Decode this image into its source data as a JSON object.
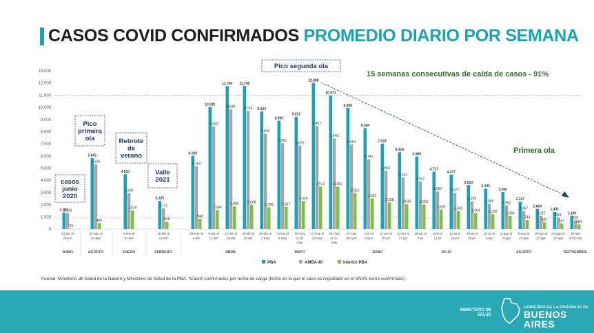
{
  "title": {
    "part1": "CASOS COVID CONFIRMADOS",
    "part2": "PROMEDIO DIARIO POR SEMANA"
  },
  "source": "Fuente: Ministerio de Salud de la Nación y Ministerio de Salud de la PBA. *Casos confirmados por fecha de carga (fecha en la que el caso es registrado en el SNVS como confirmado).",
  "footer": {
    "ministerio": [
      "MINISTERIO DE",
      "SALUD"
    ],
    "gobierno": "GOBIERNO DE LA PROVINCIA DE",
    "provincia": "BUENOS AIRES"
  },
  "colors": {
    "pba": "#1aa3b8",
    "amba": "#a6a6a6",
    "interior": "#7cc242",
    "footer": "#2ba8b6",
    "annotation_green": "#2e6b28",
    "box_navy": "#1f3864"
  },
  "chart_data": {
    "type": "bar",
    "ylim": [
      0,
      13000
    ],
    "yticks": [
      "0",
      "1.000",
      "2.000",
      "3.000",
      "4.000",
      "5.000",
      "6.000",
      "7.000",
      "8.000",
      "9.000",
      "10.000",
      "11.000",
      "12.000",
      "13.000"
    ],
    "categories": [
      [
        "14-jun al",
        "20-jun"
      ],
      [
        "24-ago al",
        "30-ago"
      ],
      [
        "4-ene al",
        "10-ene"
      ],
      [
        "15-feb al",
        "21-feb"
      ],
      [
        "29-mar al",
        "4-abr"
      ],
      [
        "5-abr al",
        "11-abr"
      ],
      [
        "12-abr al",
        "18-abr"
      ],
      [
        "19-abr al",
        "25-abr"
      ],
      [
        "26-abr al",
        "2-may"
      ],
      [
        "3-may al",
        "9-may"
      ],
      [
        "10-may",
        "al 16-",
        "may"
      ],
      [
        "17-may al",
        "23-may"
      ],
      [
        "24-may",
        "al 31-",
        "may"
      ],
      [
        "31-may",
        "al 6-jun"
      ],
      [
        "7-jun al",
        "13-jun"
      ],
      [
        "14-jun al",
        "20-jun"
      ],
      [
        "21-jun al",
        "27-jun"
      ],
      [
        "28-jun al",
        "4-jul"
      ],
      [
        "5-jul al",
        "11-jul"
      ],
      [
        "12-jul al",
        "18-jul"
      ],
      [
        "19-jul al",
        "25-jul"
      ],
      [
        "26-jul al",
        "1-ago"
      ],
      [
        "2-ago al",
        "8-ago"
      ],
      [
        "9-ago al",
        "15-ago"
      ],
      [
        "16-ago al",
        "22-ago"
      ],
      [
        "23-ago al",
        "29-ago"
      ],
      [
        "30-ago",
        "al 05-sep"
      ]
    ],
    "series": [
      {
        "name": "PBA",
        "values": [
          1362,
          5845,
          4510,
          2325,
          6020,
          10032,
          11740,
          11746,
          9663,
          8905,
          9221,
          12008,
          10973,
          9950,
          8294,
          7016,
          6314,
          5965,
          4717,
          4477,
          3610,
          3325,
          3050,
          2247,
          1664,
          1431,
          1100
        ],
        "labels": [
          "1.362",
          "5.845",
          "4.510",
          "2.325",
          "6.020",
          "10.032",
          "11.740",
          "11.746",
          "9.663",
          "8.905",
          "9.221",
          "12.008",
          "10.973",
          "9.950",
          "8.294",
          "7.016",
          "6.314",
          "5.965",
          "4.717",
          "4.477",
          "3.610",
          "3.325",
          "3.050",
          "2.247",
          "1.664",
          "1.431",
          "1.100"
        ]
      },
      {
        "name": "AMBA 40",
        "values": [
          1319,
          5334,
          2969,
          1721,
          5160,
          8442,
          9838,
          9703,
          7849,
          7061,
          6870,
          8467,
          7446,
          6954,
          5741,
          4803,
          4241,
          3922,
          3097,
          2977,
          2295,
          2086,
          1952,
          1497,
          1092,
          959,
          712
        ],
        "labels": [
          "1.319",
          "5.334",
          "2.969",
          "1.721",
          "5.160",
          "8.442",
          "9.838",
          "9.703",
          "7.849",
          "7.061",
          "6.870",
          "8.467",
          "7.446",
          "6.954",
          "5.741",
          "4.803",
          "4.241",
          "3.922",
          "3.097",
          "2.977",
          "2.295",
          "2.086",
          "1.952",
          "1.497",
          "1.092",
          "959",
          "712"
        ]
      },
      {
        "name": "Interior PBA",
        "values": [
          33,
          490,
          1529,
          598,
          848,
          1564,
          1869,
          2008,
          1786,
          1817,
          2314,
          3512,
          3491,
          2961,
          2523,
          2188,
          2049,
          2025,
          1605,
          1481,
          1304,
          1229,
          1086,
          743,
          567,
          467,
          384
        ],
        "labels": [
          "33",
          "490",
          "1.529",
          "598",
          "848",
          "1.564",
          "1.869",
          "2.008",
          "1.786",
          "1.817",
          "2.314",
          "3.512",
          "3.491",
          "2.961",
          "2.523",
          "2.188",
          "2.049",
          "2.025",
          "1.605",
          "1.481",
          "1.304",
          "1.229",
          "1.086",
          "743",
          "567",
          "467",
          "384"
        ]
      }
    ],
    "months": [
      {
        "label": "JUNIO",
        "from": 0,
        "to": 0
      },
      {
        "label": "AGOSTO",
        "from": 1,
        "to": 1
      },
      {
        "label": "ENERO",
        "from": 2,
        "to": 2
      },
      {
        "label": "FEBRERO",
        "from": 3,
        "to": 3
      },
      {
        "label": "ABRIL",
        "from": 4,
        "to": 8
      },
      {
        "label": "MAYO",
        "from": 8,
        "to": 12
      },
      {
        "label": "JUNIO",
        "from": 13,
        "to": 16
      },
      {
        "label": "JULIO",
        "from": 17,
        "to": 20
      },
      {
        "label": "AGOSTO",
        "from": 21,
        "to": 25
      },
      {
        "label": "SEPTIEMBRE",
        "from": 26,
        "to": 26
      }
    ],
    "reference_lines": [
      11000,
      1000
    ],
    "annotations": [
      {
        "text": [
          "casos",
          "junio",
          "2020"
        ],
        "boxed": true,
        "category": 0,
        "y_top": 5000
      },
      {
        "text": [
          "Pico",
          "primera",
          "ola"
        ],
        "boxed": true,
        "category": 1,
        "y_top": 9400
      },
      {
        "text": [
          "Rebrote",
          "de",
          "verano"
        ],
        "boxed": true,
        "category": 2,
        "y_top": 8600
      },
      {
        "text": [
          "Valle",
          "2021"
        ],
        "boxed": true,
        "category": 3,
        "y_top": 6000
      },
      {
        "text": [
          "Pico segunda ola"
        ],
        "boxed": true,
        "category": 11,
        "y_top": 13700
      },
      {
        "text": [
          "15 semanas consecutivas de caída de casos - 91%"
        ],
        "boxed": false,
        "green": true
      },
      {
        "text": [
          "Primera  ola"
        ],
        "boxed": false,
        "green": true
      }
    ],
    "legend_position": "bottom-center"
  }
}
